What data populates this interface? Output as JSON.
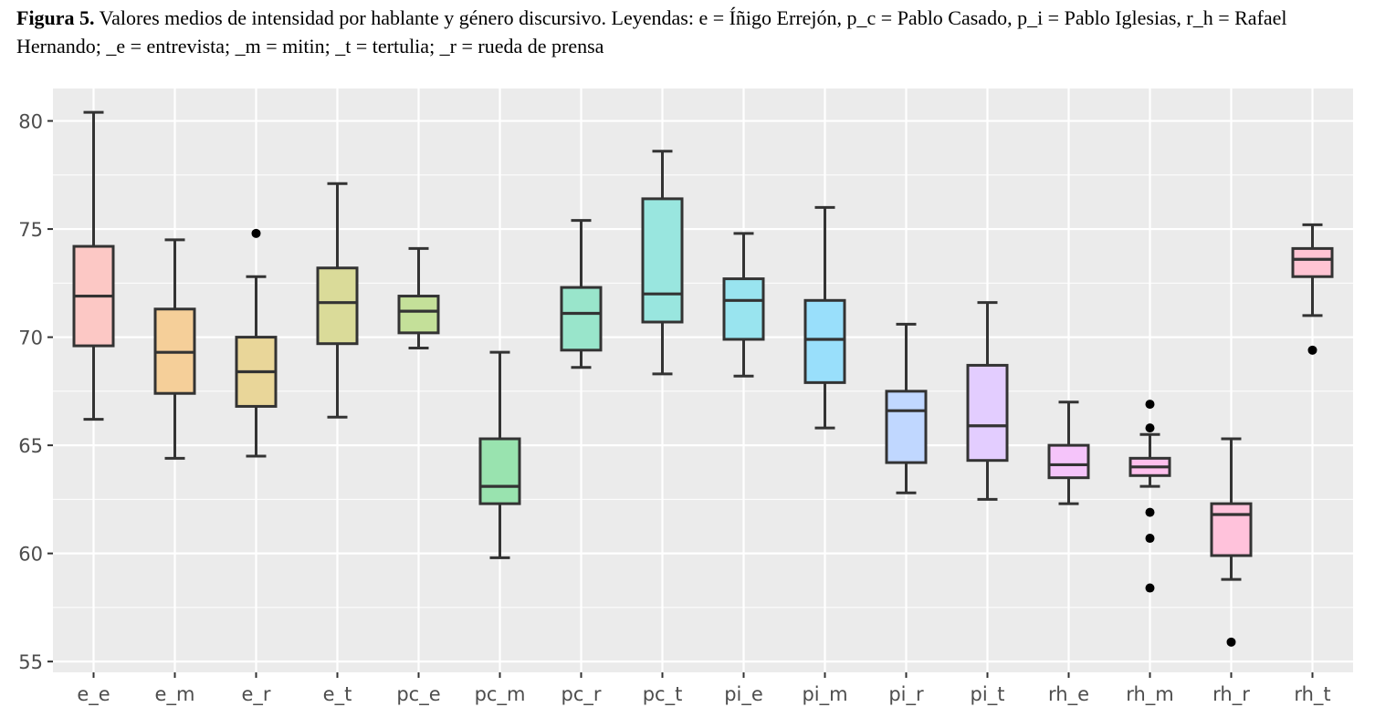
{
  "caption": {
    "label": "Figura 5.",
    "text": "Valores medios de intensidad por hablante y género discursivo. Leyendas: e = Íñigo Errejón, p_c = Pablo Casado, p_i = Pablo Iglesias, r_h = Rafael Hernando; _e = entrevista; _m = mitin; _t = tertulia; _r = rueda de prensa"
  },
  "chart_data": {
    "type": "boxplot",
    "title": "",
    "xlabel": "",
    "ylabel": "",
    "ylim": [
      54.5,
      81.5
    ],
    "yticks": [
      55,
      60,
      65,
      70,
      75,
      80
    ],
    "ytick_labels": [
      "55",
      "60",
      "65",
      "70",
      "75",
      "80"
    ],
    "grid": true,
    "legend": "none",
    "categories": [
      "e_e",
      "e_m",
      "e_r",
      "e_t",
      "pc_e",
      "pc_m",
      "pc_r",
      "pc_t",
      "pi_e",
      "pi_m",
      "pi_r",
      "pi_t",
      "rh_e",
      "rh_m",
      "rh_r",
      "rh_t"
    ],
    "boxes": [
      {
        "min": 66.2,
        "q1": 69.6,
        "median": 71.9,
        "q3": 74.2,
        "max": 80.4,
        "outliers": [],
        "color": "#F8766D"
      },
      {
        "min": 64.4,
        "q1": 67.4,
        "median": 69.3,
        "q3": 71.3,
        "max": 74.5,
        "outliers": [],
        "color": "#E58700"
      },
      {
        "min": 64.5,
        "q1": 66.8,
        "median": 68.4,
        "q3": 70.0,
        "max": 72.8,
        "outliers": [
          74.8
        ],
        "color": "#C99800"
      },
      {
        "min": 66.3,
        "q1": 69.7,
        "median": 71.6,
        "q3": 73.2,
        "max": 77.1,
        "outliers": [],
        "color": "#A3A500"
      },
      {
        "min": 69.5,
        "q1": 70.2,
        "median": 71.2,
        "q3": 71.9,
        "max": 74.1,
        "outliers": [],
        "color": "#6BB100"
      },
      {
        "min": 59.8,
        "q1": 62.3,
        "median": 63.1,
        "q3": 65.3,
        "max": 69.3,
        "outliers": [],
        "color": "#00BA38"
      },
      {
        "min": 68.6,
        "q1": 69.4,
        "median": 71.1,
        "q3": 72.3,
        "max": 75.4,
        "outliers": [],
        "color": "#00BF7D"
      },
      {
        "min": 68.3,
        "q1": 70.7,
        "median": 72.0,
        "q3": 76.4,
        "max": 78.6,
        "outliers": [],
        "color": "#00C0AF"
      },
      {
        "min": 68.2,
        "q1": 69.9,
        "median": 71.7,
        "q3": 72.7,
        "max": 74.8,
        "outliers": [],
        "color": "#00BCD8"
      },
      {
        "min": 65.8,
        "q1": 67.9,
        "median": 69.9,
        "q3": 71.7,
        "max": 76.0,
        "outliers": [],
        "color": "#00B0F6"
      },
      {
        "min": 62.8,
        "q1": 64.2,
        "median": 66.6,
        "q3": 67.5,
        "max": 70.6,
        "outliers": [],
        "color": "#619CFF"
      },
      {
        "min": 62.5,
        "q1": 64.3,
        "median": 65.9,
        "q3": 68.7,
        "max": 71.6,
        "outliers": [],
        "color": "#B983FF"
      },
      {
        "min": 62.3,
        "q1": 63.5,
        "median": 64.1,
        "q3": 65.0,
        "max": 67.0,
        "outliers": [],
        "color": "#E76BF3"
      },
      {
        "min": 63.1,
        "q1": 63.6,
        "median": 64.0,
        "q3": 64.4,
        "max": 65.5,
        "outliers": [
          66.9,
          65.8,
          61.9,
          60.7,
          58.4
        ],
        "color": "#FD61D1"
      },
      {
        "min": 58.8,
        "q1": 59.9,
        "median": 61.8,
        "q3": 62.3,
        "max": 65.3,
        "outliers": [
          55.9
        ],
        "color": "#FF67A4"
      },
      {
        "min": 71.0,
        "q1": 72.8,
        "median": 73.6,
        "q3": 74.1,
        "max": 75.2,
        "outliers": [
          69.4
        ],
        "color": "#FF6C91"
      }
    ]
  }
}
